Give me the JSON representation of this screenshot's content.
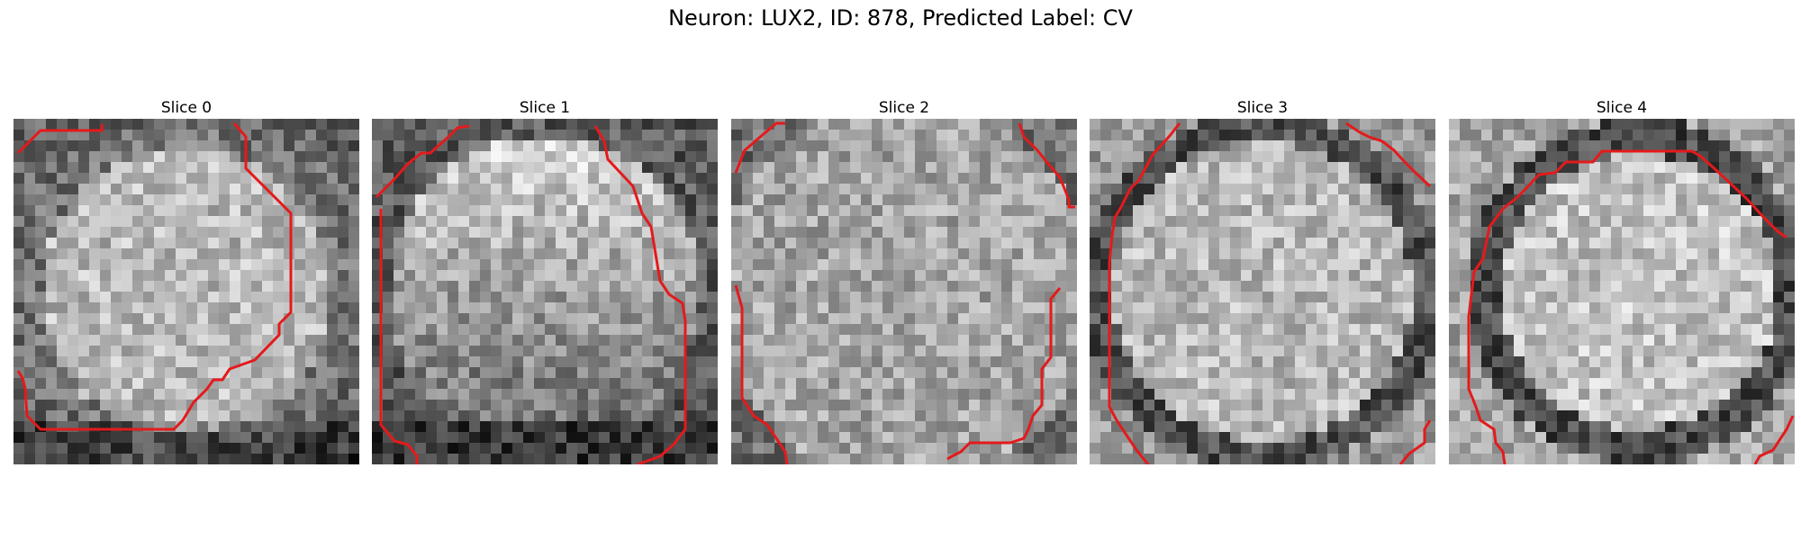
{
  "figure": {
    "title": "Neuron: LUX2, ID: 878, Predicted Label: CV"
  },
  "panels": [
    {
      "title": "Slice 0",
      "contour_color": "#e41a1c",
      "pattern": "center_bright"
    },
    {
      "title": "Slice 1",
      "contour_color": "#e41a1c",
      "pattern": "dark_bottom"
    },
    {
      "title": "Slice 2",
      "contour_color": "#e41a1c",
      "pattern": "noisy_uniform"
    },
    {
      "title": "Slice 3",
      "contour_color": "#e41a1c",
      "pattern": "ring"
    },
    {
      "title": "Slice 4",
      "contour_color": "#e41a1c",
      "pattern": "ring_left"
    }
  ]
}
